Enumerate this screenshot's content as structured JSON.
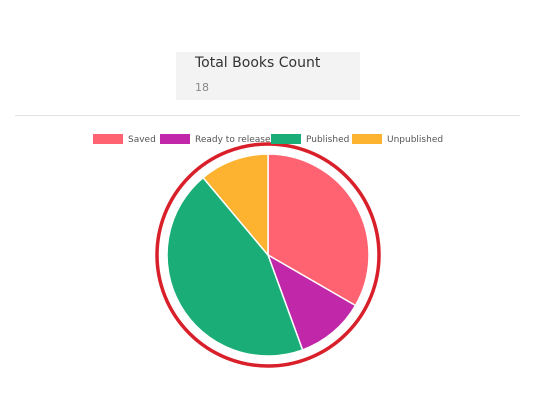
{
  "card": {
    "title": "Total Books Count",
    "count": "18"
  },
  "chart_data": {
    "type": "pie",
    "categories": [
      "Saved",
      "Ready to release",
      "Published",
      "Unpublished"
    ],
    "values": [
      6,
      2,
      8,
      2
    ],
    "colors": [
      "#ff6270",
      "#c027a9",
      "#1bad78",
      "#fdb230"
    ]
  }
}
